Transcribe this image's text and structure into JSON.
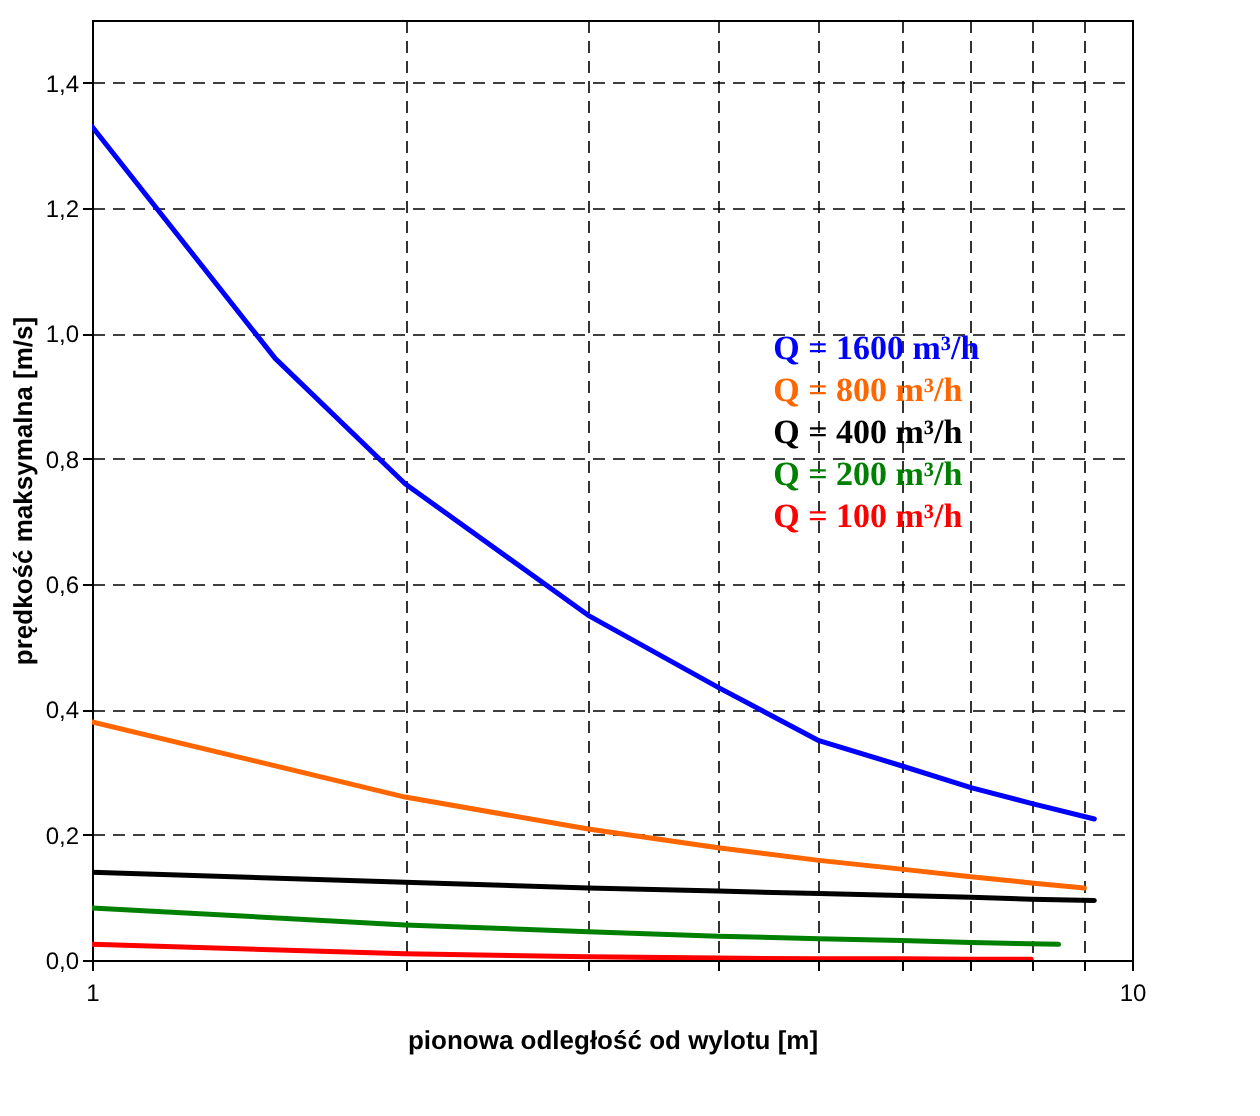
{
  "chart_data": {
    "type": "line",
    "xlabel": "pionowa odległość od wylotu [m]",
    "ylabel": "prędkość maksymalna [m/s]",
    "log": "x",
    "xlim": [
      1,
      10
    ],
    "xticks": [
      1,
      {
        "value": 2,
        "label": null
      },
      {
        "value": 3,
        "label": null
      },
      {
        "value": 4,
        "label": null
      },
      {
        "value": 5,
        "label": null
      },
      {
        "value": 6,
        "label": null
      },
      {
        "value": 7,
        "label": null
      },
      {
        "value": 8,
        "label": null
      },
      {
        "value": 9,
        "label": null
      },
      10
    ],
    "ylim": [
      0,
      1.5
    ],
    "yticks": [
      {
        "value": 0,
        "label": "0,0"
      },
      {
        "value": 0.2,
        "label": "0,2"
      },
      {
        "value": 0.4,
        "label": "0,4"
      },
      {
        "value": 0.6,
        "label": "0,6"
      },
      {
        "value": 0.8,
        "label": "0,8"
      },
      {
        "value": 1.0,
        "label": "1,0"
      },
      {
        "value": 1.2,
        "label": "1,2"
      },
      {
        "value": 1.4,
        "label": "1,4"
      }
    ],
    "grid": true,
    "line_style": "solid",
    "legend": "right",
    "series": [
      {
        "name": "Q = 1600 m³/h",
        "color": "#0000ff",
        "x": [
          1,
          1.5,
          2,
          3,
          4,
          5,
          6,
          7,
          8,
          9.2
        ],
        "values": [
          1.33,
          0.96,
          0.76,
          0.55,
          0.435,
          0.35,
          0.31,
          0.275,
          0.25,
          0.225
        ]
      },
      {
        "name": "Q = 800 m³/h",
        "color": "#ff6600",
        "x": [
          1,
          2,
          3,
          4,
          5,
          6,
          7,
          8,
          9
        ],
        "values": [
          0.38,
          0.26,
          0.209,
          0.179,
          0.159,
          0.145,
          0.133,
          0.123,
          0.115
        ]
      },
      {
        "name": "Q = 400 m³/h",
        "color": "#000000",
        "x": [
          1,
          2,
          3,
          4,
          5,
          6,
          7,
          8,
          9.2
        ],
        "values": [
          0.14,
          0.124,
          0.115,
          0.11,
          0.106,
          0.103,
          0.1,
          0.097,
          0.095
        ]
      },
      {
        "name": "Q = 200 m³/h",
        "color": "#008000",
        "x": [
          1,
          2,
          3,
          4,
          5,
          6,
          7,
          8.5
        ],
        "values": [
          0.083,
          0.056,
          0.045,
          0.038,
          0.034,
          0.031,
          0.028,
          0.025
        ]
      },
      {
        "name": "Q = 100 m³/h",
        "color": "#ff0000",
        "x": [
          1,
          2,
          3,
          4,
          5,
          6,
          7,
          8
        ],
        "values": [
          0.025,
          0.01,
          0.005,
          0.003,
          0.002,
          0.002,
          0.001,
          0.001
        ]
      }
    ]
  }
}
